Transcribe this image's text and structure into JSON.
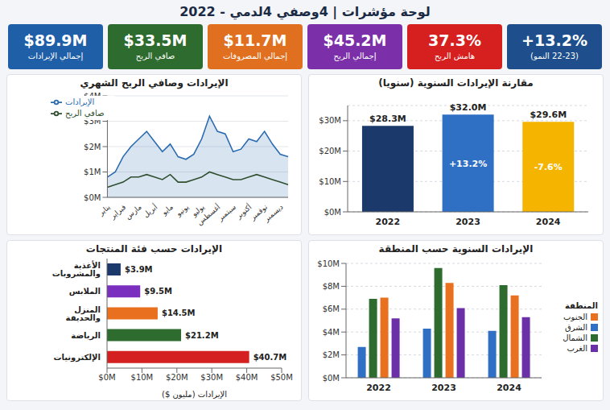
{
  "title": "لوحة مؤشرات | 4وصفي 4لدمي - 2022",
  "kpis": [
    {
      "value": "$89.9M",
      "label": "إجمالي الإيرادات",
      "color": "#1f5fa8"
    },
    {
      "value": "$33.5M",
      "label": "صافي الربح",
      "color": "#2e6b2e"
    },
    {
      "value": "$11.7M",
      "label": "إجمالي المصروفات",
      "color": "#e07020"
    },
    {
      "value": "$45.2M",
      "label": "إجمالي الربح",
      "color": "#7b2fa8"
    },
    {
      "value": "37.3%",
      "label": "هامش الربح",
      "color": "#d62020"
    },
    {
      "value": "+13.2%",
      "label": "(22-23 النمو)",
      "color": "#1e4f8c"
    }
  ],
  "chart_data": [
    {
      "type": "line",
      "title": "الإيرادات وصافي الربح الشهري",
      "categories": [
        "يناير",
        null,
        "فبراير",
        null,
        "مارس",
        null,
        "أبريل",
        null,
        "مايو",
        null,
        "يونيو",
        null,
        "يوليو",
        null,
        "أغسطس",
        null,
        "سبتمبر",
        null,
        "أكتوبر",
        null,
        "نوفمبر",
        null,
        "ديسمبر",
        null
      ],
      "series": [
        {
          "name": "الإيرادات",
          "type": "area",
          "color": "#2b6cb0",
          "values": [
            0.8,
            1.0,
            1.6,
            2.0,
            2.3,
            2.6,
            2.2,
            1.8,
            2.1,
            1.6,
            1.5,
            1.7,
            2.3,
            3.2,
            2.6,
            2.5,
            1.8,
            1.9,
            2.3,
            2.2,
            2.6,
            2.1,
            1.7,
            1.6
          ]
        },
        {
          "name": "صافي الربح",
          "type": "line",
          "color": "#2f4f2f",
          "values": [
            0.4,
            0.5,
            0.6,
            0.8,
            0.8,
            0.9,
            0.8,
            0.7,
            0.9,
            0.6,
            0.6,
            0.7,
            0.8,
            1.0,
            0.9,
            0.8,
            0.7,
            0.7,
            0.8,
            0.9,
            0.8,
            0.7,
            0.6,
            0.5
          ]
        }
      ],
      "ylim": [
        0,
        4
      ],
      "yticks": [
        {
          "value": 0,
          "label": "$0M"
        },
        {
          "value": 1,
          "label": "$1M"
        },
        {
          "value": 2,
          "label": "$2M"
        },
        {
          "value": 3,
          "label": "$3M"
        },
        {
          "value": 4,
          "label": "$4M"
        }
      ],
      "grid": true,
      "legend": "upper left"
    },
    {
      "type": "bar",
      "title": "مقارنة الإيرادات السنوية (سنويا)",
      "categories": [
        "2022",
        "2023",
        "2024"
      ],
      "values": [
        28.3,
        32.0,
        29.6
      ],
      "value_labels": [
        "$28.3M",
        "$32.0M",
        "$29.6M"
      ],
      "colors": [
        "#1b3a6b",
        "#2f6fc4",
        "#f5b400"
      ],
      "annotations": [
        null,
        "+13.2%",
        "-7.6%"
      ],
      "ylim": [
        0,
        35
      ],
      "yticks": [
        {
          "value": 0,
          "label": "$0M"
        },
        {
          "value": 10,
          "label": "$10M"
        },
        {
          "value": 20,
          "label": "$20M"
        },
        {
          "value": 30,
          "label": "$30M"
        }
      ],
      "grid": true,
      "data_labels": true
    },
    {
      "type": "bar",
      "orientation": "horizontal",
      "title": "الإيرادات حسب فئة المنتجات",
      "categories": [
        "الأغذية والمشروبات",
        "الملابس",
        "المنزل والحديقة",
        "الرياضة",
        "الإلكترونيات"
      ],
      "values": [
        3.9,
        9.5,
        14.5,
        21.2,
        40.7
      ],
      "value_labels": [
        "$3.9M",
        "$9.5M",
        "$14.5M",
        "$21.2M",
        "$40.7M"
      ],
      "colors": [
        "#1b3a6b",
        "#7b2fbf",
        "#e8701e",
        "#2e6b2e",
        "#d42020"
      ],
      "xlim": [
        0,
        50
      ],
      "xticks": [
        {
          "value": 0,
          "label": "$0M"
        },
        {
          "value": 10,
          "label": "$10M"
        },
        {
          "value": 20,
          "label": "$20M"
        },
        {
          "value": 30,
          "label": "$30M"
        },
        {
          "value": 40,
          "label": "$40M"
        },
        {
          "value": 50,
          "label": "$50M"
        }
      ],
      "xlabel": "الإيرادات (مليون $)",
      "grid": false,
      "data_labels": true
    },
    {
      "type": "bar",
      "title": "الإيرادات السنوية حسب المنطقة",
      "categories": [
        "2022",
        "2023",
        "2024"
      ],
      "series": [
        {
          "name": "الشرق",
          "color": "#2f6fc4",
          "values": [
            2.7,
            4.3,
            4.1
          ]
        },
        {
          "name": "الشمال",
          "color": "#2e6b2e",
          "values": [
            6.9,
            9.6,
            8.1
          ]
        },
        {
          "name": "الجنوب",
          "color": "#e8701e",
          "values": [
            7.0,
            8.3,
            7.2
          ]
        },
        {
          "name": "الغرب",
          "color": "#6b2fa8",
          "values": [
            5.2,
            6.1,
            5.3
          ]
        }
      ],
      "ylim": [
        0,
        10
      ],
      "yticks": [
        {
          "value": 0,
          "label": "$0M"
        },
        {
          "value": 2,
          "label": "$2M"
        },
        {
          "value": 4,
          "label": "$4M"
        },
        {
          "value": 6,
          "label": "$6M"
        },
        {
          "value": 8,
          "label": "$8M"
        },
        {
          "value": 10,
          "label": "$10M"
        }
      ],
      "grid": true,
      "legend": "right",
      "legend_title": "المنطقة"
    }
  ]
}
